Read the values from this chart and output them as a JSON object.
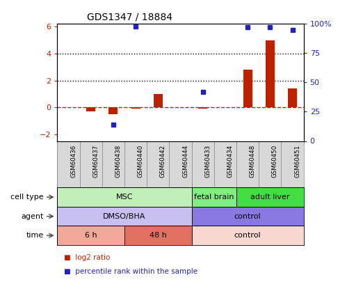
{
  "title": "GDS1347 / 18884",
  "samples": [
    "GSM60436",
    "GSM60437",
    "GSM60438",
    "GSM60440",
    "GSM60442",
    "GSM60444",
    "GSM60433",
    "GSM60434",
    "GSM60448",
    "GSM60450",
    "GSM60451"
  ],
  "log2_ratio": [
    0.0,
    -0.3,
    -0.5,
    -0.1,
    1.0,
    0.0,
    -0.1,
    0.0,
    2.8,
    5.0,
    1.4
  ],
  "percentile_rank": [
    null,
    null,
    14,
    98,
    null,
    null,
    42,
    null,
    97,
    97,
    95
  ],
  "ylim_left": [
    -2.5,
    6.2
  ],
  "yticks_left": [
    -2,
    0,
    2,
    4,
    6
  ],
  "ylim_right": [
    0,
    100
  ],
  "yticks_right": [
    0,
    25,
    50,
    75,
    100
  ],
  "yticklabels_right": [
    "0",
    "25",
    "50",
    "75",
    "100%"
  ],
  "dotted_lines": [
    4.0,
    2.0
  ],
  "bar_color": "#bb2200",
  "dot_color": "#2222bb",
  "cell_type_groups": [
    {
      "label": "MSC",
      "start": 0,
      "end": 6,
      "color": "#c0f0b8"
    },
    {
      "label": "fetal brain",
      "start": 6,
      "end": 8,
      "color": "#80ee80"
    },
    {
      "label": "adult liver",
      "start": 8,
      "end": 11,
      "color": "#44dd44"
    }
  ],
  "agent_groups": [
    {
      "label": "DMSO/BHA",
      "start": 0,
      "end": 6,
      "color": "#c8c0f0"
    },
    {
      "label": "control",
      "start": 6,
      "end": 11,
      "color": "#8878e0"
    }
  ],
  "time_groups": [
    {
      "label": "6 h",
      "start": 0,
      "end": 3,
      "color": "#f0a898"
    },
    {
      "label": "48 h",
      "start": 3,
      "end": 6,
      "color": "#e07060"
    },
    {
      "label": "control",
      "start": 6,
      "end": 11,
      "color": "#f8d8d0"
    }
  ],
  "legend": [
    {
      "label": "log2 ratio",
      "color": "#bb2200"
    },
    {
      "label": "percentile rank within the sample",
      "color": "#2222bb"
    }
  ],
  "sample_box_color": "#d8d8d8",
  "sample_box_edge": "#888888"
}
